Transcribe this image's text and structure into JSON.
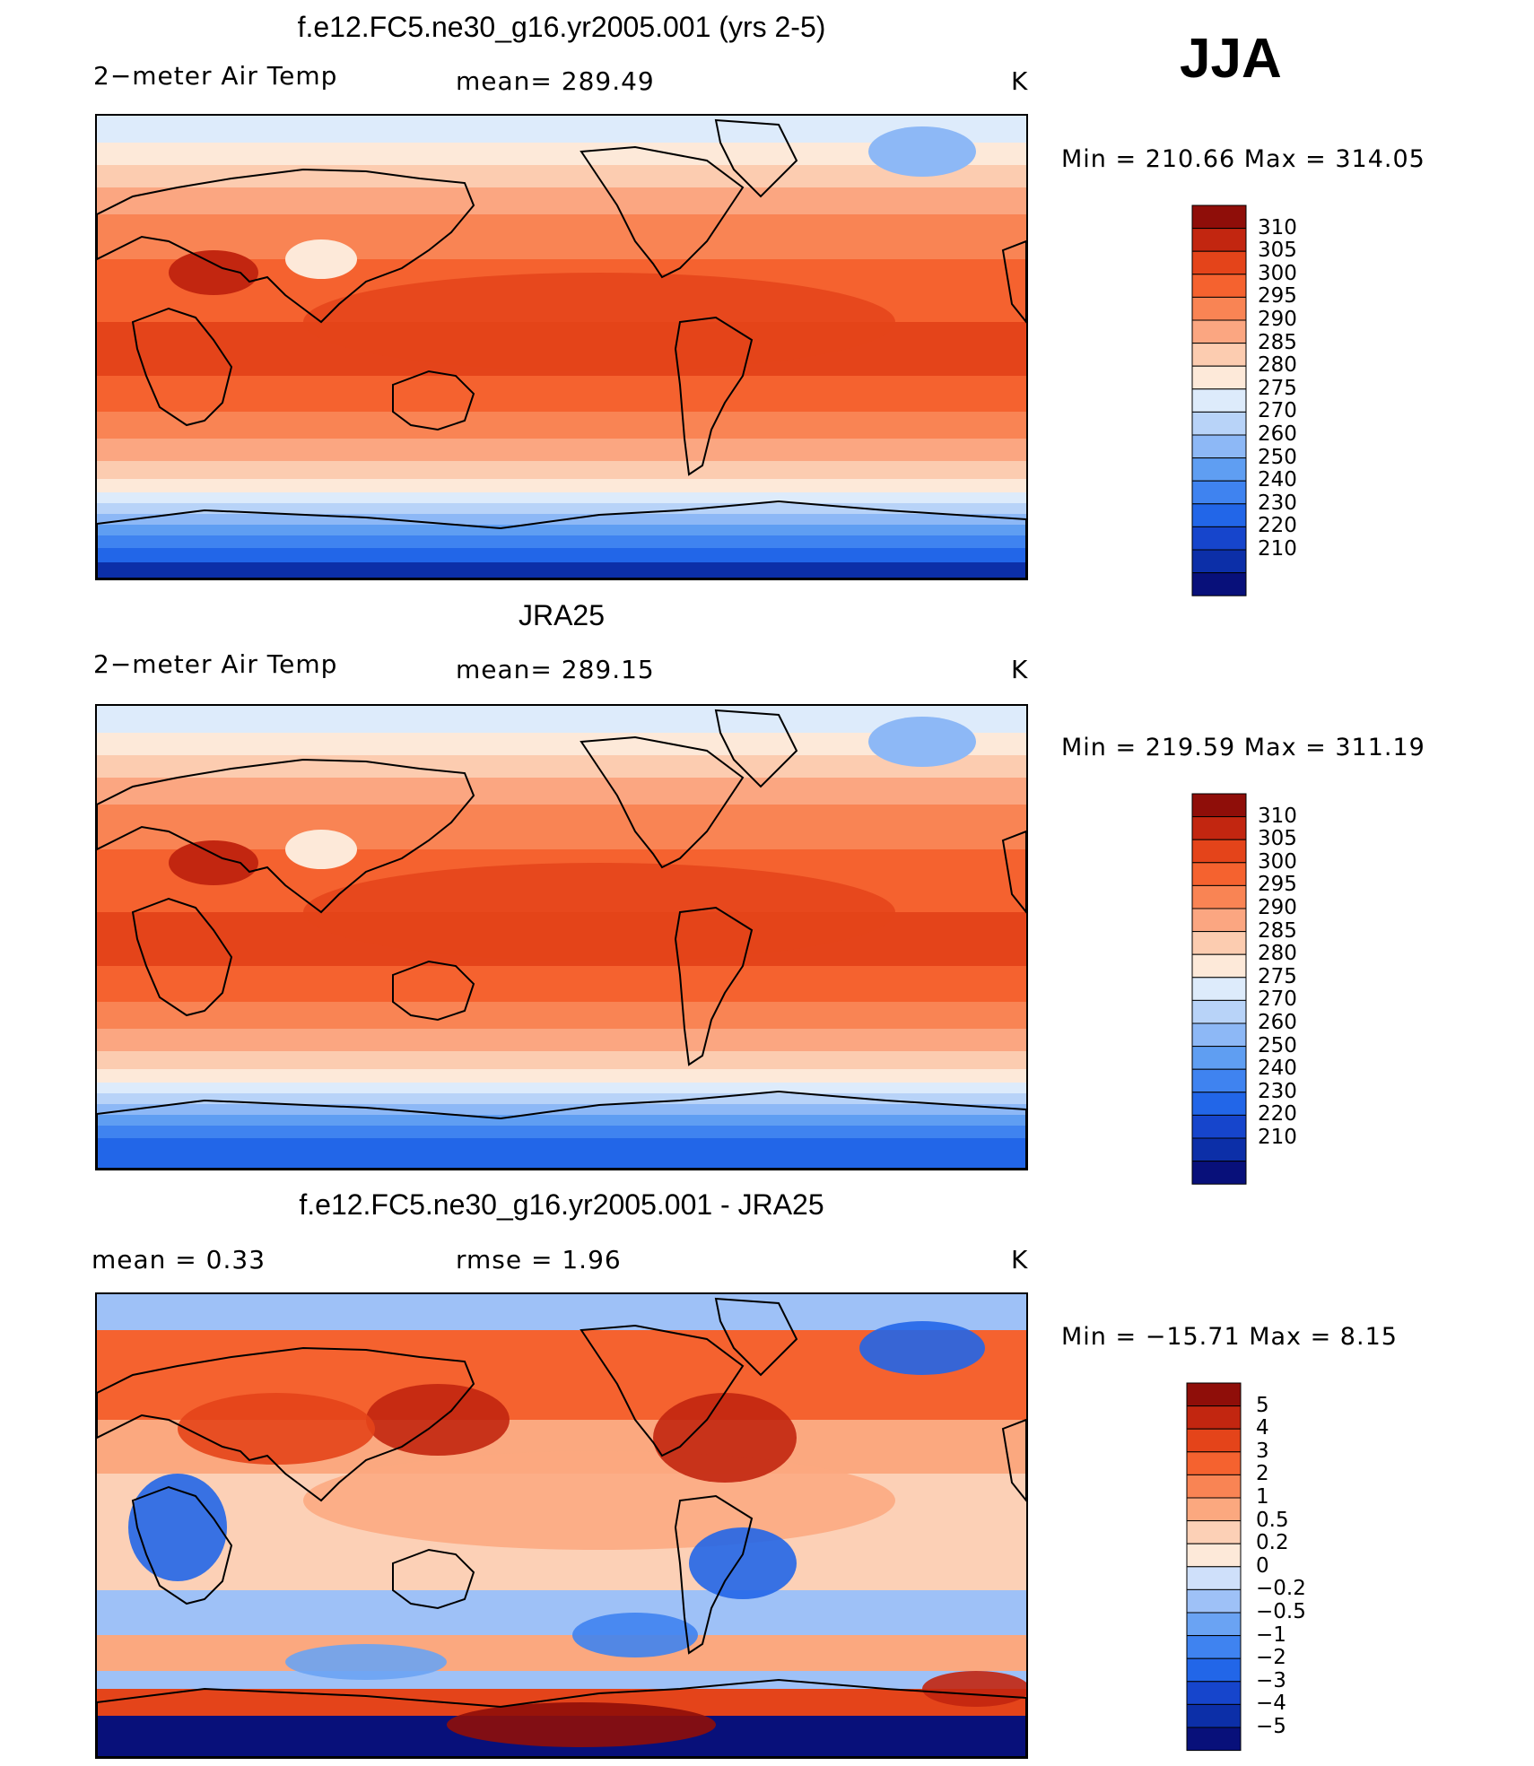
{
  "season": "JJA",
  "colors": {
    "abs": [
      "#08107a",
      "#0c2fa8",
      "#1645cc",
      "#2266e8",
      "#3f83f0",
      "#5f9ef2",
      "#8db8f6",
      "#b8d3f8",
      "#ddebfb",
      "#fde9d9",
      "#fcccb0",
      "#fba681",
      "#f98454",
      "#f5622f",
      "#e4441a",
      "#c22610",
      "#8f0e09"
    ],
    "diff": [
      "#08107a",
      "#0c2fa8",
      "#1645cc",
      "#2266e8",
      "#3f83f0",
      "#6aa3f3",
      "#9ec1f7",
      "#cfe0fa",
      "#fde9d9",
      "#fcd0b6",
      "#fba87f",
      "#f98454",
      "#f5622f",
      "#e4441a",
      "#c22610",
      "#8f0e09"
    ]
  },
  "chart_data": [
    {
      "type": "heatmap",
      "title": "f.e12.FC5.ne30_g16.yr2005.001 (yrs 2-5)",
      "left_label": "2−meter Air Temp",
      "center_label": "mean=  289.49",
      "unit": "K",
      "stats": "Min  =  210.66  Max  =  314.05",
      "mean": 289.49,
      "min": 210.66,
      "max": 314.05,
      "colorbar_levels": [
        "310",
        "305",
        "300",
        "295",
        "290",
        "285",
        "280",
        "275",
        "270",
        "260",
        "250",
        "240",
        "230",
        "220",
        "210"
      ]
    },
    {
      "type": "heatmap",
      "title": "JRA25",
      "left_label": "2−meter Air Temp",
      "center_label": "mean=  289.15",
      "unit": "K",
      "stats": "Min  =  219.59  Max  =  311.19",
      "mean": 289.15,
      "min": 219.59,
      "max": 311.19,
      "colorbar_levels": [
        "310",
        "305",
        "300",
        "295",
        "290",
        "285",
        "280",
        "275",
        "270",
        "260",
        "250",
        "240",
        "230",
        "220",
        "210"
      ]
    },
    {
      "type": "heatmap",
      "title": "f.e12.FC5.ne30_g16.yr2005.001 - JRA25",
      "left_label": "mean  =      0.33",
      "center_label": "rmse  =      1.96",
      "unit": "K",
      "stats": "Min  =  −15.71  Max  =      8.15",
      "mean": 0.33,
      "rmse": 1.96,
      "min": -15.71,
      "max": 8.15,
      "colorbar_levels": [
        "5",
        "4",
        "3",
        "2",
        "1",
        "0.5",
        "0.2",
        "0",
        "−0.2",
        "−0.5",
        "−1",
        "−2",
        "−3",
        "−4",
        "−5"
      ]
    }
  ]
}
